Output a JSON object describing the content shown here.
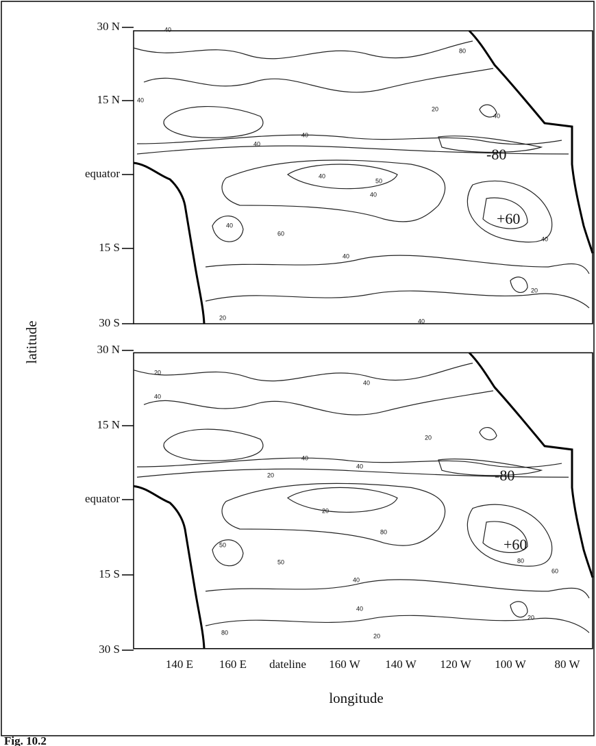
{
  "figure": {
    "y_label": "latitude",
    "x_label": "longitude",
    "caption": "Fig. 10.2",
    "lon_ticks": [
      "140 E",
      "160 E",
      "dateline",
      "160 W",
      "140 W",
      "120 W",
      "100 W",
      "80 W"
    ],
    "panels": [
      {
        "lat_ticks": [
          "30 N",
          "15 N",
          "equator",
          "15 S",
          "30 S"
        ],
        "annotations": [
          "-80",
          "+60"
        ],
        "contour_labels": [
          "40",
          "80",
          "40",
          "20",
          "40",
          "40",
          "40",
          "40",
          "50",
          "40",
          "60",
          "40",
          "40",
          "40",
          "20",
          "20",
          "40"
        ]
      },
      {
        "lat_ticks": [
          "30 N",
          "15 N",
          "equator",
          "15 S",
          "30 S"
        ],
        "annotations": [
          "-80",
          "+60"
        ],
        "contour_labels": [
          "20",
          "40",
          "40",
          "20",
          "40",
          "20",
          "40",
          "20",
          "80",
          "50",
          "50",
          "60",
          "40",
          "80",
          "40",
          "20",
          "20",
          "80"
        ]
      }
    ]
  }
}
